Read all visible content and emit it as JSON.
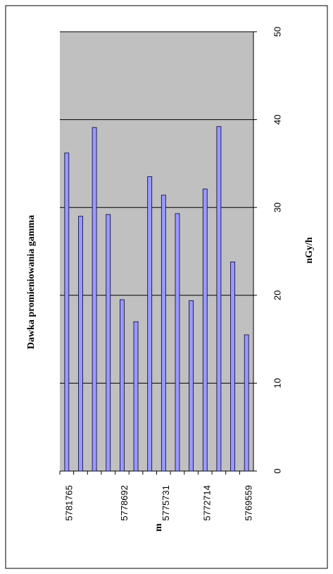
{
  "chart_data": {
    "type": "bar",
    "title": "Dawka promieniowania gamma",
    "x_label": "m",
    "y_label": "nGy/h",
    "categories": [
      "5781765",
      null,
      null,
      null,
      "5778692",
      null,
      null,
      "5775731",
      null,
      null,
      "5772714",
      null,
      null,
      "5769559"
    ],
    "values": [
      36.2,
      29.0,
      39.1,
      29.2,
      19.5,
      17.0,
      33.5,
      31.4,
      29.3,
      19.4,
      32.1,
      39.2,
      23.8,
      15.5
    ],
    "color": "#9999ff",
    "ylim": [
      0,
      50
    ],
    "yticks": [
      0,
      10,
      20,
      30,
      40,
      50
    ],
    "grid": true
  }
}
